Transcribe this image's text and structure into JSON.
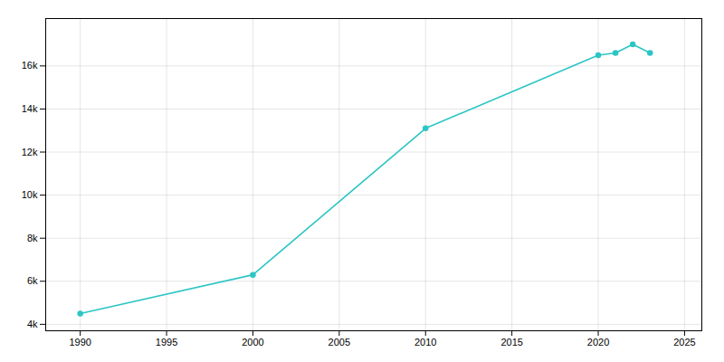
{
  "chart_data": {
    "type": "line",
    "x": [
      1990,
      2000,
      2010,
      2020,
      2021,
      2022,
      2023
    ],
    "values": [
      4500,
      6300,
      13100,
      16500,
      16600,
      17000,
      16600
    ],
    "color": "#2dc5c5",
    "marker": "circle",
    "xlim": [
      1988,
      2026
    ],
    "xticks": [
      1990,
      1995,
      2000,
      2005,
      2010,
      2015,
      2020,
      2025
    ],
    "ylim": [
      3700,
      18200
    ],
    "yticks": [
      {
        "value": 4000,
        "label": "4k"
      },
      {
        "value": 6000,
        "label": "6k"
      },
      {
        "value": 8000,
        "label": "8k"
      },
      {
        "value": 10000,
        "label": "10k"
      },
      {
        "value": 12000,
        "label": "12k"
      },
      {
        "value": 14000,
        "label": "14k"
      },
      {
        "value": 16000,
        "label": "16k"
      }
    ],
    "grid": true
  }
}
